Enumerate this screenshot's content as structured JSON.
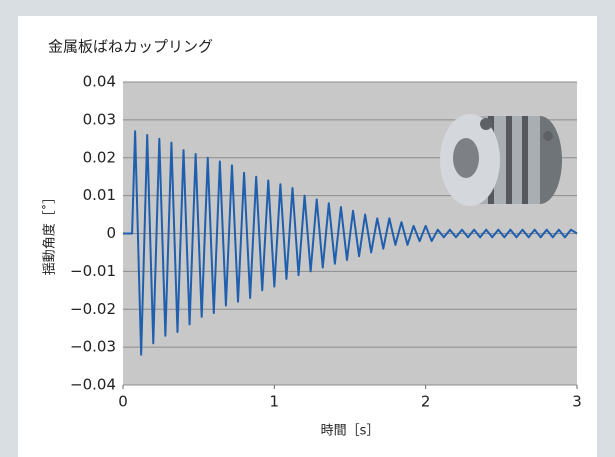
{
  "chart_data": {
    "type": "line",
    "title": "金属板ばねカップリング",
    "x_label": "時間［s］",
    "y_label": "揺動角度［˚］",
    "color": "#1f5fae",
    "x": [
      0,
      0.06,
      0.08,
      0.12,
      0.16,
      0.2,
      0.24,
      0.28,
      0.32,
      0.36,
      0.4,
      0.44,
      0.48,
      0.52,
      0.56,
      0.6,
      0.64,
      0.68,
      0.72,
      0.76,
      0.8,
      0.84,
      0.88,
      0.92,
      0.96,
      1.0,
      1.04,
      1.08,
      1.12,
      1.16,
      1.2,
      1.24,
      1.28,
      1.32,
      1.36,
      1.4,
      1.44,
      1.48,
      1.52,
      1.56,
      1.6,
      1.64,
      1.68,
      1.72,
      1.76,
      1.8,
      1.84,
      1.88,
      1.92,
      1.96,
      2.0,
      2.04,
      2.08,
      2.12,
      2.16,
      2.2,
      2.24,
      2.28,
      2.32,
      2.36,
      2.4,
      2.44,
      2.48,
      2.52,
      2.56,
      2.6,
      2.64,
      2.68,
      2.72,
      2.76,
      2.8,
      2.84,
      2.88,
      2.92,
      2.96,
      3.0
    ],
    "values": [
      0,
      0,
      0.027,
      -0.032,
      0.026,
      -0.029,
      0.025,
      -0.027,
      0.024,
      -0.026,
      0.022,
      -0.024,
      0.021,
      -0.022,
      0.02,
      -0.021,
      0.019,
      -0.019,
      0.018,
      -0.018,
      0.016,
      -0.017,
      0.015,
      -0.015,
      0.014,
      -0.014,
      0.013,
      -0.012,
      0.012,
      -0.011,
      0.01,
      -0.01,
      0.009,
      -0.009,
      0.008,
      -0.008,
      0.007,
      -0.007,
      0.006,
      -0.006,
      0.005,
      -0.005,
      0.004,
      -0.004,
      0.004,
      -0.003,
      0.003,
      -0.003,
      0.002,
      -0.002,
      0.002,
      -0.002,
      0.001,
      -0.001,
      0.001,
      -0.001,
      0.001,
      -0.001,
      0.001,
      -0.001,
      0.001,
      -0.001,
      0.001,
      -0.001,
      0.001,
      -0.001,
      0.001,
      -0.001,
      0.001,
      -0.001,
      0.001,
      -0.001,
      0.001,
      -0.001,
      0.001,
      0
    ],
    "xlim": [
      0,
      3
    ],
    "xticks": [
      0,
      1,
      2,
      3
    ],
    "ylim": [
      -0.04,
      0.04
    ],
    "yticks": [
      {
        "value": -0.04,
        "label": "−0.04"
      },
      {
        "value": -0.03,
        "label": "−0.03"
      },
      {
        "value": -0.02,
        "label": "−0.02"
      },
      {
        "value": -0.01,
        "label": "−0.01"
      },
      0,
      0.01,
      0.02,
      0.03,
      0.04
    ],
    "grid": true
  }
}
